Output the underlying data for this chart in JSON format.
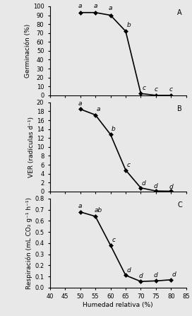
{
  "x": [
    50,
    55,
    60,
    65,
    70,
    75,
    80
  ],
  "germination": [
    93,
    93,
    90,
    72,
    2,
    0,
    0
  ],
  "germ_labels": [
    "a",
    "a",
    "a",
    "b",
    "c",
    "c",
    "c"
  ],
  "ver": [
    18.5,
    17.2,
    12.8,
    4.8,
    0.8,
    0.1,
    0.05
  ],
  "ver_labels": [
    "a",
    "a",
    "b",
    "c",
    "d",
    "d",
    "d"
  ],
  "resp": [
    0.68,
    0.64,
    0.38,
    0.11,
    0.055,
    0.06,
    0.07
  ],
  "resp_labels": [
    "a",
    "ab",
    "c",
    "d",
    "d",
    "d",
    "d"
  ],
  "xlim": [
    40,
    85
  ],
  "xticks": [
    40,
    45,
    50,
    55,
    60,
    65,
    70,
    75,
    80,
    85
  ],
  "xtick_labels": [
    "40",
    "45",
    "50",
    "55",
    "60",
    "65",
    "70",
    "75",
    "80",
    "85"
  ],
  "germ_ylim": [
    0,
    100
  ],
  "germ_yticks": [
    0,
    10,
    20,
    30,
    40,
    50,
    60,
    70,
    80,
    90,
    100
  ],
  "ver_ylim": [
    0,
    20
  ],
  "ver_yticks": [
    0,
    2,
    4,
    6,
    8,
    10,
    12,
    14,
    16,
    18,
    20
  ],
  "resp_ylim": [
    0.0,
    0.8
  ],
  "resp_yticks": [
    0.0,
    0.1,
    0.2,
    0.3,
    0.4,
    0.5,
    0.6,
    0.7,
    0.8
  ],
  "xlabel": "Humedad relativa (%)",
  "ylabel_A": "Germinación (%)",
  "ylabel_B": "VER (radículas d⁻¹)",
  "ylabel_C": "Respiración (mL CO₂ g⁻¹ h⁻¹)",
  "panel_labels": [
    "A",
    "B",
    "C"
  ],
  "line_color": "#000000",
  "marker": "D",
  "markersize": 3,
  "linewidth": 1.2,
  "font_size": 7,
  "label_font_size": 6.5,
  "axis_label_font_size": 6.5,
  "tick_font_size": 6,
  "bg_color": "#e8e8e8"
}
